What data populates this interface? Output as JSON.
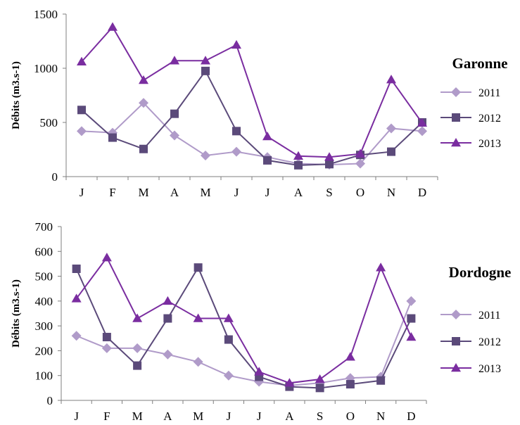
{
  "chart_data": [
    {
      "type": "line",
      "title": "Garonne",
      "ylabel": "Débits (m3.s-1)",
      "xlabel": "",
      "categories": [
        "J",
        "F",
        "M",
        "A",
        "M",
        "J",
        "J",
        "A",
        "S",
        "O",
        "N",
        "D"
      ],
      "ylim": [
        0,
        1500
      ],
      "yticks": [
        0,
        500,
        1000,
        1500
      ],
      "grid": false,
      "legend_position": "right",
      "series": [
        {
          "name": "2011",
          "color": "#B09BC9",
          "marker": "diamond",
          "values": [
            420,
            405,
            680,
            380,
            195,
            230,
            180,
            120,
            110,
            120,
            445,
            420
          ]
        },
        {
          "name": "2012",
          "color": "#5B4A7A",
          "marker": "square",
          "values": [
            615,
            360,
            255,
            580,
            975,
            420,
            150,
            105,
            115,
            200,
            230,
            500
          ]
        },
        {
          "name": "2013",
          "color": "#7A2DA0",
          "marker": "triangle",
          "values": [
            1060,
            1380,
            890,
            1070,
            1070,
            1215,
            370,
            190,
            180,
            210,
            895,
            495
          ]
        }
      ]
    },
    {
      "type": "line",
      "title": "Dordogne",
      "ylabel": "Débits (m3.s-1)",
      "xlabel": "",
      "categories": [
        "J",
        "F",
        "M",
        "A",
        "M",
        "J",
        "J",
        "A",
        "S",
        "O",
        "N",
        "D"
      ],
      "ylim": [
        0,
        700
      ],
      "yticks": [
        0,
        100,
        200,
        300,
        400,
        500,
        600,
        700
      ],
      "grid": false,
      "legend_position": "right",
      "series": [
        {
          "name": "2011",
          "color": "#B09BC9",
          "marker": "diamond",
          "values": [
            260,
            210,
            210,
            185,
            155,
            100,
            75,
            60,
            70,
            90,
            95,
            400
          ]
        },
        {
          "name": "2012",
          "color": "#5B4A7A",
          "marker": "square",
          "values": [
            530,
            255,
            140,
            330,
            535,
            245,
            95,
            55,
            50,
            65,
            80,
            330
          ]
        },
        {
          "name": "2013",
          "color": "#7A2DA0",
          "marker": "triangle",
          "values": [
            410,
            575,
            330,
            400,
            330,
            330,
            115,
            70,
            85,
            175,
            535,
            255
          ]
        }
      ]
    }
  ]
}
